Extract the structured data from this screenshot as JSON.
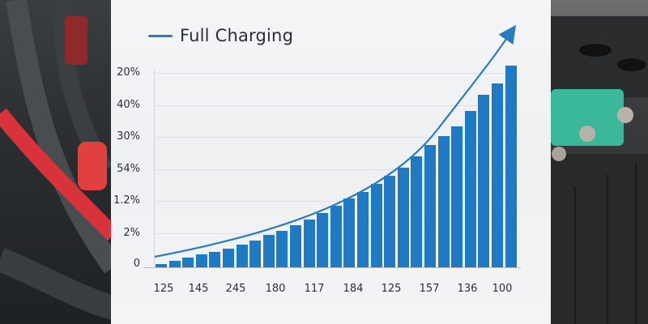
{
  "legend": {
    "label": "Full Charging",
    "color": "#2b7bbf"
  },
  "y_axis": {
    "ticks": [
      "20%",
      "40%",
      "30%",
      "54%",
      "1.2%",
      "2%",
      "0"
    ]
  },
  "x_axis": {
    "ticks": [
      "125",
      "145",
      "245",
      "180",
      "117",
      "184",
      "125",
      "157",
      "136",
      "100"
    ]
  },
  "colors": {
    "bar": "#1f7ac3",
    "curve": "#2b7bbf",
    "panel": "#f2f3f5"
  },
  "chart_data": {
    "type": "bar",
    "title": "Full Charging",
    "xlabel": "",
    "ylabel": "",
    "y_tick_labels": [
      "0",
      "2%",
      "1.2%",
      "54%",
      "30%",
      "40%",
      "20%"
    ],
    "x_tick_labels": [
      "125",
      "145",
      "245",
      "180",
      "117",
      "184",
      "125",
      "157",
      "136",
      "100"
    ],
    "series": [
      {
        "name": "Full Charging (bars, relative height px above baseline)",
        "values": [
          4,
          8,
          12,
          16,
          19,
          23,
          28,
          33,
          40,
          45,
          52,
          59,
          67,
          76,
          85,
          93,
          103,
          113,
          123,
          137,
          151,
          162,
          174,
          193,
          213,
          227,
          249
        ]
      }
    ],
    "trend_line": {
      "type": "exponential curve with arrow",
      "start": [
        191,
        317
      ],
      "end": [
        634,
        36
      ]
    },
    "ylim": [
      0,
      250
    ],
    "grid": true,
    "legend_position": "top-left"
  }
}
